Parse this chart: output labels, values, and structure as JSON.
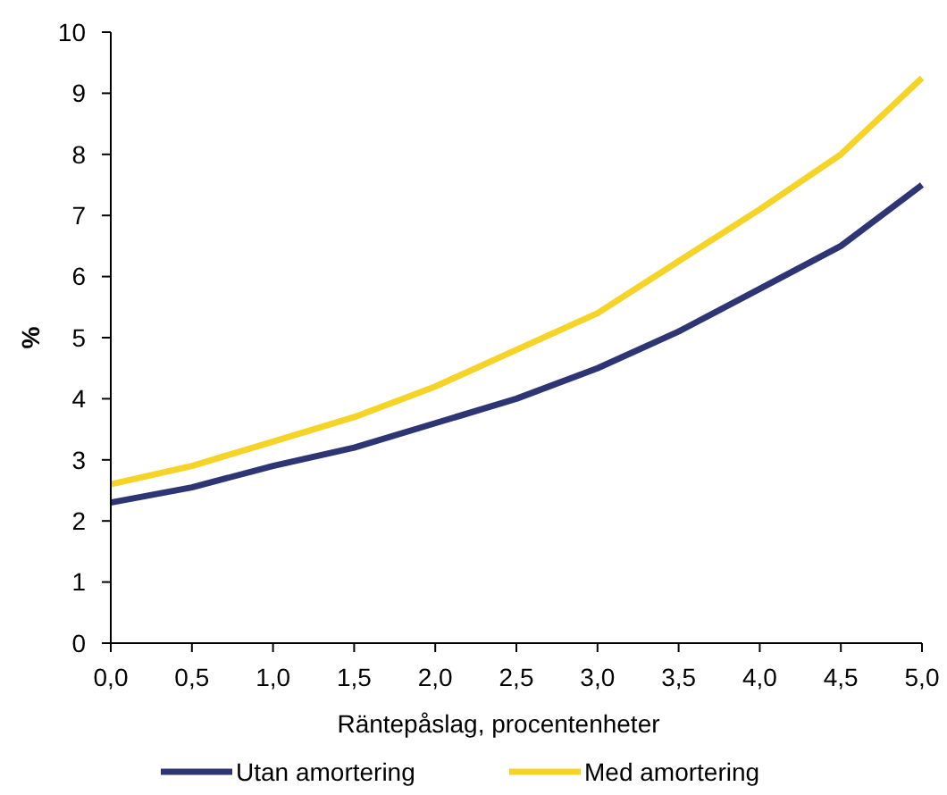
{
  "chart_data": {
    "type": "line",
    "xlabel": "Räntepåslag, procentenheter",
    "ylabel": "%",
    "x": [
      0,
      0.5,
      1,
      1.5,
      2,
      2.5,
      3,
      3.5,
      4,
      4.5,
      5
    ],
    "xlim": [
      0,
      5
    ],
    "xticks": [
      {
        "value": 0,
        "label": "0,0"
      },
      {
        "value": 0.5,
        "label": "0,5"
      },
      {
        "value": 1,
        "label": "1,0"
      },
      {
        "value": 1.5,
        "label": "1,5"
      },
      {
        "value": 2,
        "label": "2,0"
      },
      {
        "value": 2.5,
        "label": "2,5"
      },
      {
        "value": 3,
        "label": "3,0"
      },
      {
        "value": 3.5,
        "label": "3,5"
      },
      {
        "value": 4,
        "label": "4,0"
      },
      {
        "value": 4.5,
        "label": "4,5"
      },
      {
        "value": 5,
        "label": "5,0"
      }
    ],
    "ylim": [
      0,
      10
    ],
    "yticks": [
      0,
      1,
      2,
      3,
      4,
      5,
      6,
      7,
      8,
      9,
      10
    ],
    "series": [
      {
        "name": "Utan amortering",
        "color": "#2e3574",
        "values": [
          2.3,
          2.55,
          2.9,
          3.2,
          3.6,
          4.0,
          4.5,
          5.1,
          5.8,
          6.5,
          7.5
        ]
      },
      {
        "name": "Med amortering",
        "color": "#f5d327",
        "values": [
          2.6,
          2.9,
          3.3,
          3.7,
          4.2,
          4.8,
          5.4,
          6.25,
          7.1,
          8.0,
          9.25
        ]
      }
    ],
    "legend": "bottom",
    "grid": false,
    "marker": "none",
    "line_style": "solid"
  }
}
